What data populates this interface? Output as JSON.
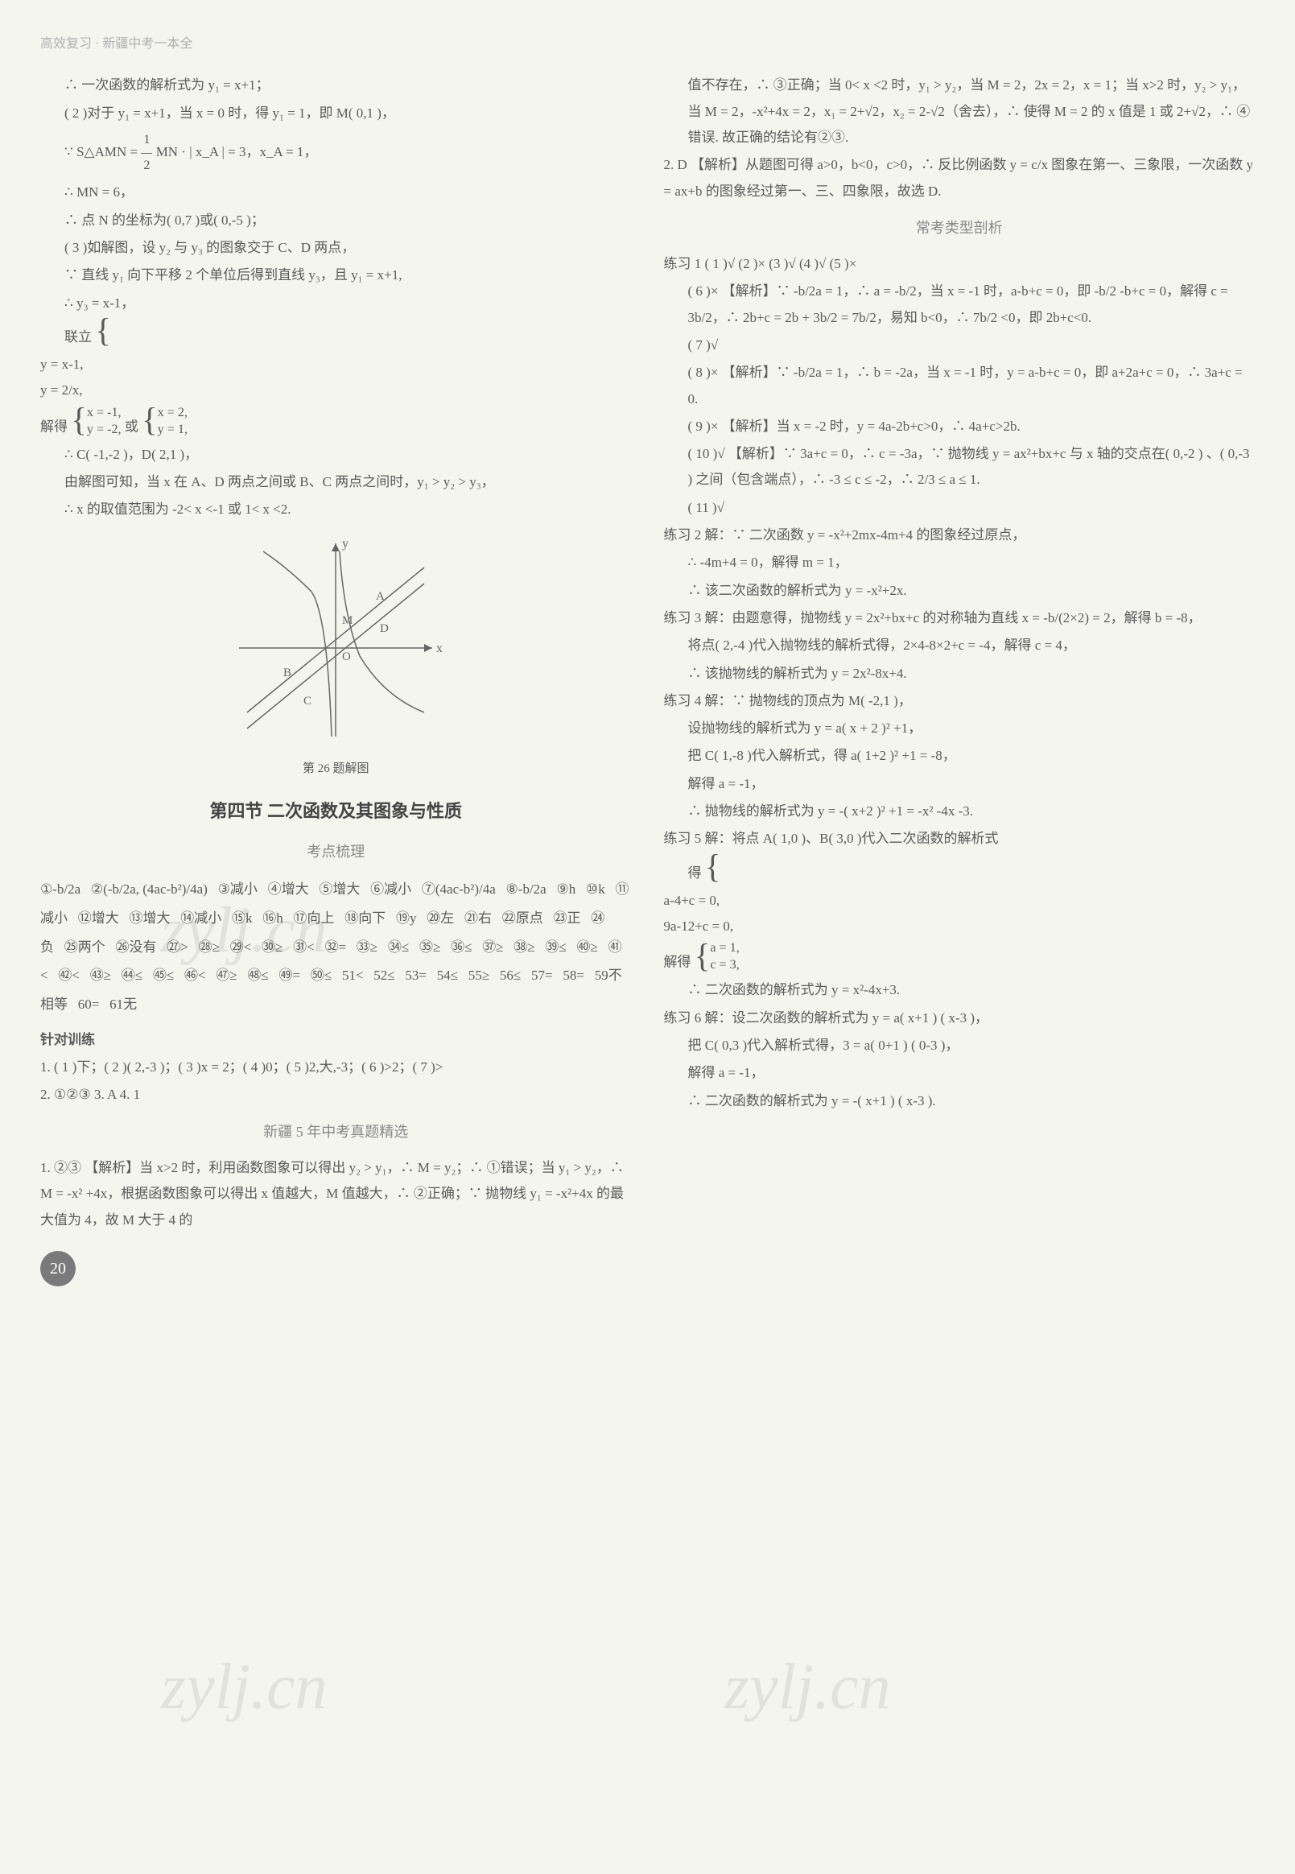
{
  "header": "高效复习 · 新疆中考一本全",
  "page_number": "20",
  "watermark_text": "zylj.cn",
  "left_col": {
    "l1": "∴ 一次函数的解析式为 y₁ = x+1；",
    "l2": "( 2 )对于 y₁ = x+1，当 x = 0 时，得 y₁ = 1，即 M( 0,1 )，",
    "l3a": "∵ S△AMN =",
    "l3_frac_num": "1",
    "l3_frac_den": "2",
    "l3b": "MN · | x_A | = 3，x_A = 1，",
    "l4": "∴ MN = 6，",
    "l5": "∴ 点 N 的坐标为( 0,7 )或( 0,-5 )；",
    "l6": "( 3 )如解图，设 y₂ 与 y₃ 的图象交于 C、D 两点，",
    "l7": "∵ 直线 y₁ 向下平移 2 个单位后得到直线 y₃，且 y₁ = x+1,",
    "l8": "∴ y₃ = x-1，",
    "l9a": "联立",
    "l9_sys1_a": "y = x-1,",
    "l9_sys1_b": "y = 2/x,",
    "l9b": "解得",
    "l9_sys2_a": "x = -1,",
    "l9_sys2_b": "y = -2,",
    "l9c": "或",
    "l9_sys3_a": "x = 2,",
    "l9_sys3_b": "y = 1,",
    "l10": "∴ C( -1,-2 )，D( 2,1 )，",
    "l11": "由解图可知，当 x 在 A、D 两点之间或 B、C 两点之间时，y₁ > y₂ > y₃，",
    "l12": "∴ x 的取值范围为 -2< x <-1 或 1< x <2.",
    "fig_label_y": "y",
    "fig_label_x": "x",
    "fig_label_A": "A",
    "fig_label_B": "B",
    "fig_label_C": "C",
    "fig_label_D": "D",
    "fig_label_M": "M",
    "fig_label_O": "O",
    "figure_caption": "第 26 题解图",
    "section4_title": "第四节  二次函数及其图象与性质",
    "kaodian_title": "考点梳理",
    "kd_items": [
      "-b/2a",
      "(-b/2a, (4ac-b²)/4a)",
      "减小",
      "增大",
      "增大",
      "减小",
      "(4ac-b²)/4a",
      "-b/2a",
      "h",
      "k",
      "减小",
      "增大",
      "增大",
      "减小",
      "k",
      "h",
      "向上",
      "向下",
      "y",
      "左",
      "右",
      "原点",
      "正",
      "负",
      "两个",
      "没有",
      ">",
      "≥",
      "<",
      "≥",
      "<",
      "=",
      "≥",
      "≤",
      "≥",
      "≤",
      "≥",
      "≥",
      "≤",
      "≥",
      "<",
      "<",
      "≥",
      "≤",
      "≤",
      "<",
      "≥",
      "≤",
      "=",
      "≤",
      "<",
      "≤",
      "=",
      "≤",
      "≥",
      "≤",
      "=",
      "=",
      "不相等",
      "=",
      "无"
    ],
    "zhendui_title": "针对训练",
    "zd1": "1.  ( 1 )下；( 2 )( 2,-3 )；( 3 )x = 2；( 4 )0；( 5 )2,大,-3；( 6 )>2；( 7 )>",
    "zd2": "2.  ①②③   3. A   4. 1",
    "jingxuan_title": "新疆 5 年中考真题精选",
    "jx1_a": "1.  ②③  【解析】当 x>2 时，利用函数图象可以得出 y₂ > y₁，∴ M = y₂；∴ ①错误；当 y₁ > y₂，∴ M = -x² +4x，根据函数图象可以得出 x 值越大，M 值越大，∴ ②正确；∵ 抛物线 y₁ = -x²+4x 的最大值为 4，故 M 大于 4 的"
  },
  "right_col": {
    "r1": "值不存在，∴ ③正确；当 0< x <2 时，y₁ > y₂，当 M = 2，2x = 2，x = 1；当 x>2 时，y₂ > y₁，当 M = 2，-x²+4x = 2，x₁ = 2+√2，x₂ = 2-√2（舍去），∴ 使得 M = 2 的 x 值是 1 或 2+√2，∴ ④错误. 故正确的结论有②③.",
    "r2": "2.  D  【解析】从题图可得 a>0，b<0，c>0，∴ 反比例函数 y = c/x 图象在第一、三象限，一次函数 y = ax+b 的图象经过第一、三、四象限，故选 D.",
    "changkao_title": "常考类型剖析",
    "lx1_head": "练习 1   ( 1 )√   (2 )×   (3 )√   (4 )√   (5 )×",
    "lx1_6": "( 6 )×  【解析】∵ -b/2a = 1，∴ a = -b/2，当 x = -1 时，a-b+c = 0，即 -b/2 -b+c = 0，解得 c = 3b/2，∴ 2b+c = 2b + 3b/2 = 7b/2，易知 b<0，∴ 7b/2 <0，即 2b+c<0.",
    "lx1_7": "( 7 )√",
    "lx1_8": "( 8 )×  【解析】∵ -b/2a = 1，∴ b = -2a，当 x = -1 时，y = a-b+c = 0，即 a+2a+c = 0，∴ 3a+c = 0.",
    "lx1_9": "( 9 )×  【解析】当 x = -2 时，y = 4a-2b+c>0，∴ 4a+c>2b.",
    "lx1_10": "( 10 )√  【解析】∵ 3a+c = 0，∴ c = -3a，∵ 抛物线 y = ax²+bx+c 与 x 轴的交点在( 0,-2 ) 、( 0,-3 ) 之间（包含端点），∴ -3 ≤ c ≤ -2，∴ 2/3 ≤ a ≤ 1.",
    "lx1_11": "( 11 )√",
    "lx2_a": "练习 2   解：∵ 二次函数 y = -x²+2mx-4m+4 的图象经过原点，",
    "lx2_b": "∴ -4m+4 = 0，解得 m = 1，",
    "lx2_c": "∴ 该二次函数的解析式为 y = -x²+2x.",
    "lx3_a": "练习 3   解：由题意得，抛物线 y = 2x²+bx+c 的对称轴为直线 x = -b/(2×2) = 2，解得 b = -8，",
    "lx3_b": "将点( 2,-4 )代入抛物线的解析式得，2×4-8×2+c = -4，解得 c = 4，",
    "lx3_c": "∴ 该抛物线的解析式为 y = 2x²-8x+4.",
    "lx4_a": "练习 4   解：∵ 抛物线的顶点为 M( -2,1 )，",
    "lx4_b": "设抛物线的解析式为 y = a( x + 2 )² +1，",
    "lx4_c": "把 C( 1,-8 )代入解析式，得 a( 1+2 )² +1 = -8，",
    "lx4_d": "解得 a = -1，",
    "lx4_e": "∴ 抛物线的解析式为 y = -( x+2 )² +1 = -x² -4x -3.",
    "lx5_a": "练习 5   解：将点 A( 1,0 )、B( 3,0 )代入二次函数的解析式",
    "lx5_b": "得",
    "lx5_sys1_a": "a-4+c = 0,",
    "lx5_sys1_b": "9a-12+c = 0,",
    "lx5_c": "解得",
    "lx5_sys2_a": "a = 1,",
    "lx5_sys2_b": "c = 3,",
    "lx5_d": "∴ 二次函数的解析式为 y = x²-4x+3.",
    "lx6_a": "练习 6   解：设二次函数的解析式为 y = a( x+1 ) ( x-3 )，",
    "lx6_b": "把 C( 0,3 )代入解析式得，3 = a( 0+1 ) ( 0-3 )，",
    "lx6_c": "解得 a = -1，",
    "lx6_d": "∴ 二次函数的解析式为 y = -( x+1 ) ( x-3 )."
  }
}
